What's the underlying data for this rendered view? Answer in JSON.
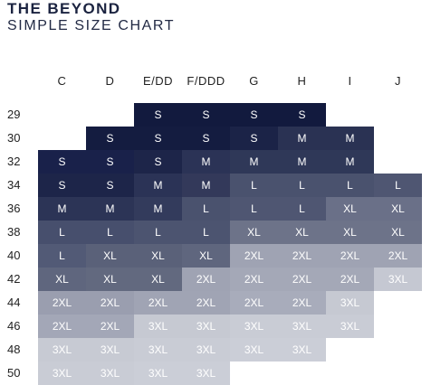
{
  "header": {
    "brand": "THE BEYOND",
    "subtitle": "SIMPLE SIZE CHART"
  },
  "chart_data": {
    "type": "table",
    "title": "SIMPLE SIZE CHART",
    "columns": [
      "C",
      "D",
      "E/DD",
      "F/DDD",
      "G",
      "H",
      "I",
      "J"
    ],
    "rows": [
      "29",
      "30",
      "32",
      "34",
      "36",
      "38",
      "40",
      "42",
      "44",
      "46",
      "48",
      "50"
    ],
    "cells": [
      [
        null,
        null,
        "S",
        "S",
        "S",
        "S",
        null,
        null
      ],
      [
        null,
        "S",
        "S",
        "S",
        "S",
        "M",
        "M",
        null
      ],
      [
        "S",
        "S",
        "S",
        "M",
        "M",
        "M",
        "M",
        null
      ],
      [
        "S",
        "S",
        "M",
        "M",
        "L",
        "L",
        "L",
        "L"
      ],
      [
        "M",
        "M",
        "M",
        "L",
        "L",
        "L",
        "XL",
        "XL"
      ],
      [
        "L",
        "L",
        "L",
        "L",
        "XL",
        "XL",
        "XL",
        "XL"
      ],
      [
        "L",
        "XL",
        "XL",
        "XL",
        "2XL",
        "2XL",
        "2XL",
        "2XL"
      ],
      [
        "XL",
        "XL",
        "XL",
        "2XL",
        "2XL",
        "2XL",
        "2XL",
        "3XL"
      ],
      [
        "2XL",
        "2XL",
        "2XL",
        "2XL",
        "2XL",
        "2XL",
        "3XL",
        null
      ],
      [
        "2XL",
        "2XL",
        "3XL",
        "3XL",
        "3XL",
        "3XL",
        "3XL",
        null
      ],
      [
        "3XL",
        "3XL",
        "3XL",
        "3XL",
        "3XL",
        "3XL",
        null,
        null
      ],
      [
        "3XL",
        "3XL",
        "3XL",
        "3XL",
        null,
        null,
        null,
        null
      ]
    ],
    "cell_colors": [
      [
        null,
        null,
        "#121a3e",
        "#121a3e",
        "#121a3e",
        "#121a3e",
        null,
        null
      ],
      [
        null,
        "#141c40",
        "#141c40",
        "#141c40",
        "#1b2347",
        "#2a3253",
        "#2a3253",
        null
      ],
      [
        "#19214a",
        "#19214a",
        "#1d2549",
        "#2b3356",
        "#2f3858",
        "#2f3858",
        "#2f3858",
        null
      ],
      [
        "#1d2549",
        "#1d2549",
        "#2b3356",
        "#33395a",
        "#4a526e",
        "#4a526e",
        "#4a526e",
        "#4f5672"
      ],
      [
        "#2c3456",
        "#2c3456",
        "#333b5c",
        "#4a526e",
        "#4f5672",
        "#4f5672",
        "#6a7088",
        "#6a7088"
      ],
      [
        "#474f6d",
        "#474f6d",
        "#4c5470",
        "#4c5470",
        "#6d7389",
        "#6d7389",
        "#6d7389",
        "#6d7389"
      ],
      [
        "#525a76",
        "#5a6179",
        "#5a6179",
        "#5f667e",
        "#9fa3b3",
        "#9fa3b3",
        "#9fa3b3",
        "#9fa3b3"
      ],
      [
        "#5f667e",
        "#62697f",
        "#62697f",
        "#9fa3b3",
        "#a4a8b7",
        "#a4a8b7",
        "#a4a8b7",
        "#c5c8d2"
      ],
      [
        "#9a9eaf",
        "#9a9eaf",
        "#a0a4b4",
        "#a0a4b4",
        "#a8acbb",
        "#a8acbb",
        "#c6c9d2",
        null
      ],
      [
        "#a3a7b7",
        "#a3a7b7",
        "#c6c9d2",
        "#c6c9d2",
        "#c9ccd5",
        "#c9ccd5",
        "#c9ccd5",
        null
      ],
      [
        "#c7cad3",
        "#c7cad3",
        "#c9ccd5",
        "#c9ccd5",
        "#cbced7",
        "#cbced7",
        null,
        null
      ],
      [
        "#c9ccd5",
        "#c9ccd5",
        "#cbced7",
        "#cbced7",
        null,
        null,
        null,
        null
      ]
    ]
  }
}
